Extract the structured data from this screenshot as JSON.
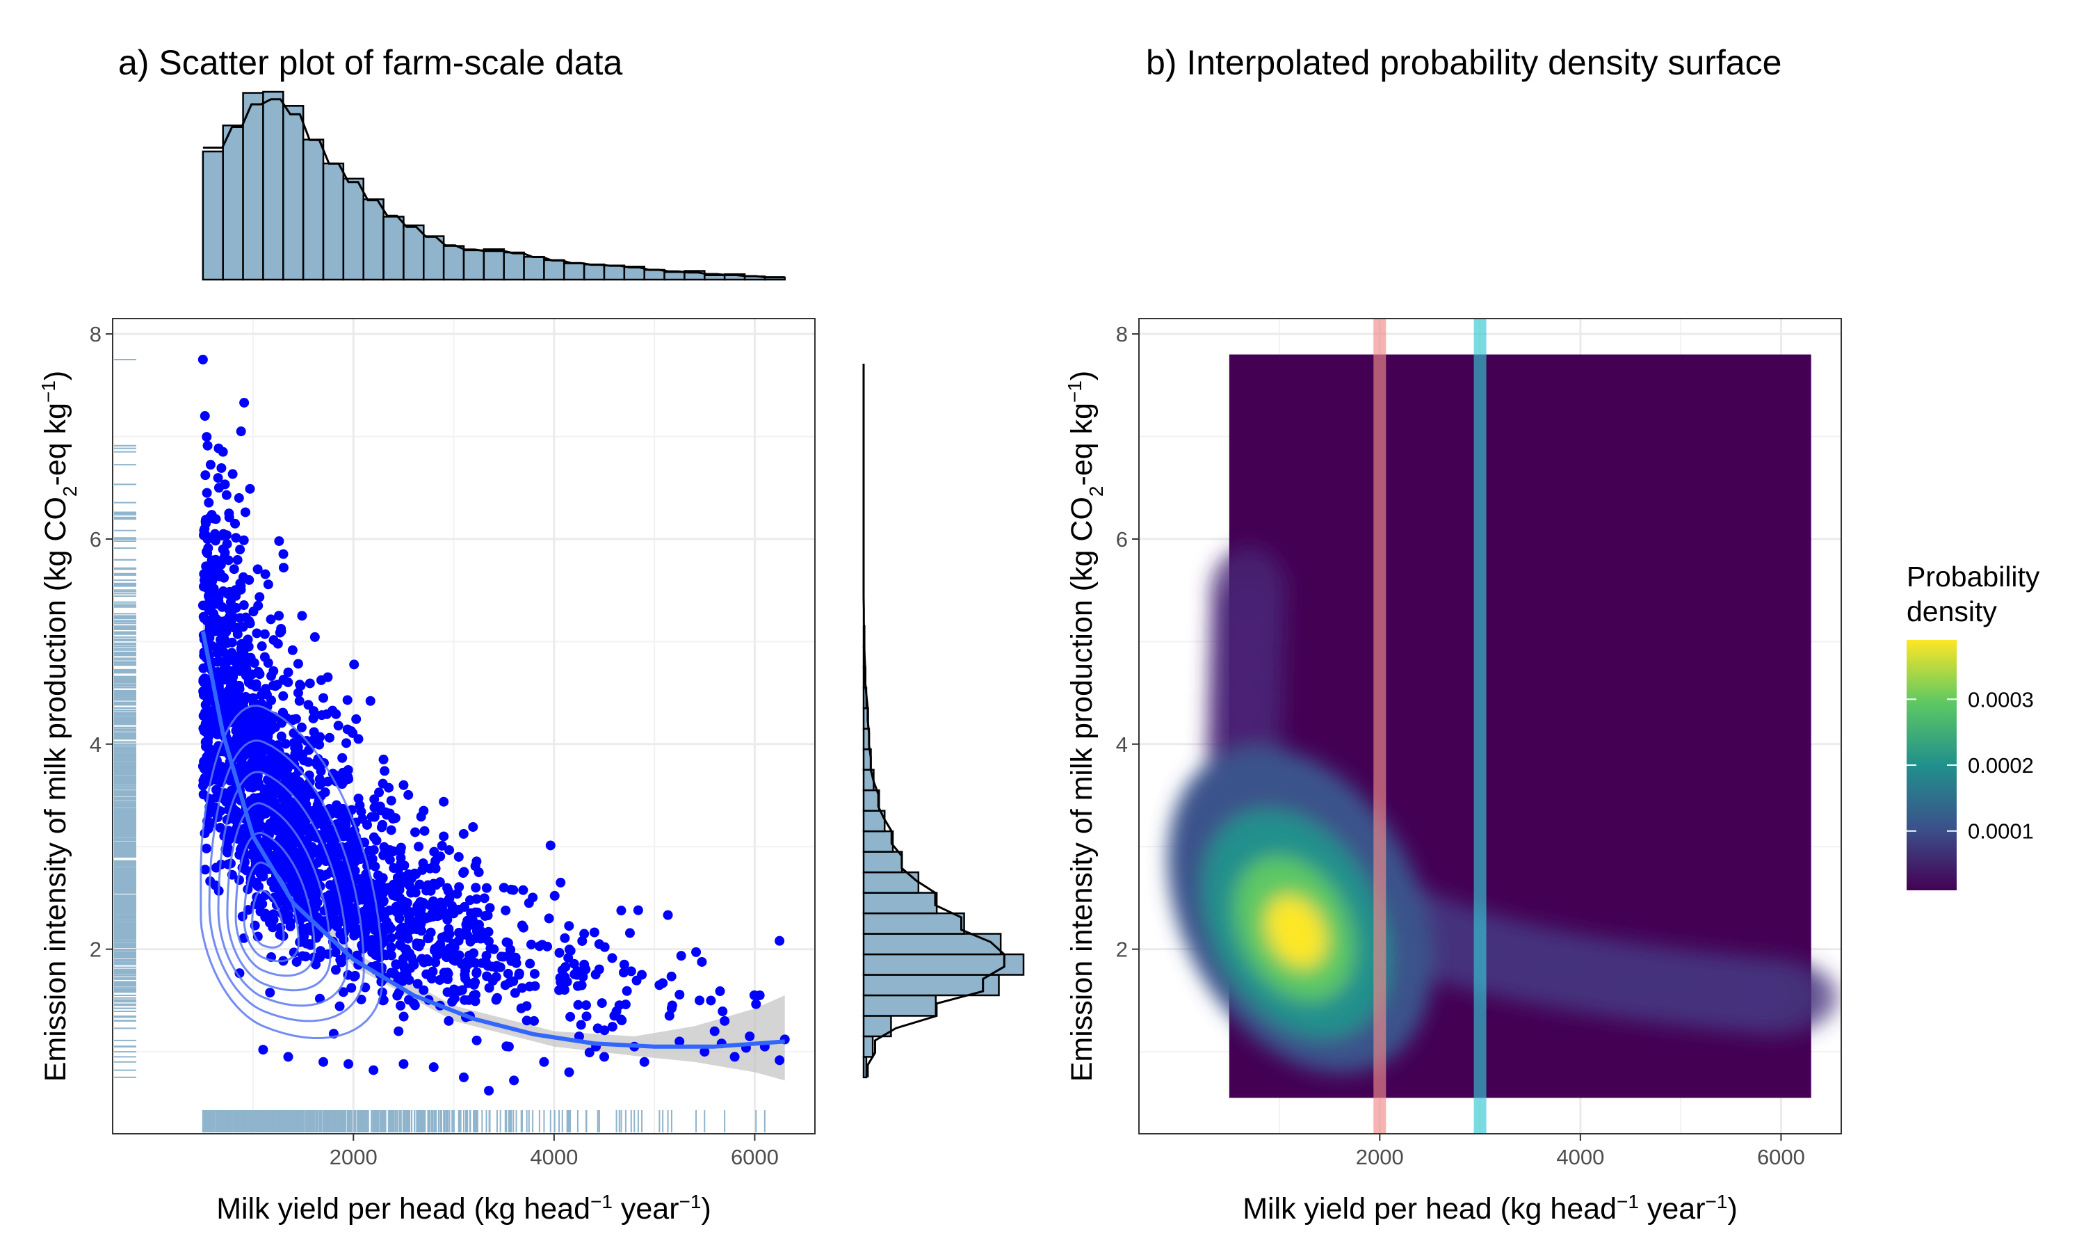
{
  "chart_data": [
    {
      "type": "scatter",
      "title": "a) Scatter plot of farm-scale data",
      "xlabel_main": "Milk yield per head (kg head",
      "xlabel_sup1": "−1",
      "xlabel_mid": " year",
      "xlabel_sup2": "−1",
      "xlabel_end": ")",
      "ylabel_main": "Emission intensity of milk production (kg CO",
      "ylabel_sub": "2",
      "ylabel_mid": "-eq kg",
      "ylabel_sup": "−1",
      "ylabel_end": ")",
      "xlim": [
        -400,
        6600
      ],
      "ylim": [
        0.2,
        8.15
      ],
      "xticks": [
        2000,
        4000,
        6000
      ],
      "xtick_labels": [
        "2000",
        "4000",
        "6000"
      ],
      "yticks": [
        2,
        4,
        6,
        8
      ],
      "ytick_labels": [
        "2",
        "4",
        "6",
        "8"
      ],
      "grid": true,
      "point_color": "#0000ff",
      "points": [
        [
          500,
          7.75
        ],
        [
          520,
          7.2
        ],
        [
          880,
          7.05
        ],
        [
          700,
          6.85
        ],
        [
          860,
          6.4
        ],
        [
          540,
          6.45
        ],
        [
          600,
          6.2
        ],
        [
          660,
          6.5
        ],
        [
          620,
          6.05
        ],
        [
          760,
          6.25
        ],
        [
          820,
          6.15
        ],
        [
          700,
          5.9
        ],
        [
          560,
          5.55
        ],
        [
          680,
          5.75
        ],
        [
          960,
          5.6
        ],
        [
          1050,
          5.35
        ],
        [
          1280,
          5.1
        ],
        [
          1350,
          4.7
        ],
        [
          1450,
          4.5
        ],
        [
          1700,
          4.45
        ],
        [
          1850,
          4.18
        ],
        [
          1600,
          4.25
        ],
        [
          2050,
          4.05
        ],
        [
          2300,
          3.85
        ],
        [
          2500,
          3.6
        ],
        [
          2700,
          3.35
        ],
        [
          2900,
          3.1
        ],
        [
          3050,
          2.9
        ],
        [
          3250,
          2.75
        ],
        [
          3500,
          2.6
        ],
        [
          3750,
          2.45
        ],
        [
          3950,
          2.3
        ],
        [
          4300,
          2.15
        ],
        [
          4450,
          2.05
        ],
        [
          4700,
          1.85
        ],
        [
          4300,
          1.85
        ],
        [
          5050,
          1.65
        ],
        [
          5450,
          1.5
        ],
        [
          6050,
          1.55
        ],
        [
          5700,
          1.3
        ],
        [
          6300,
          1.12
        ],
        [
          5250,
          1.1
        ],
        [
          5500,
          1.0
        ],
        [
          5800,
          0.95
        ],
        [
          5950,
          1.15
        ],
        [
          4800,
          1.05
        ],
        [
          4500,
          0.95
        ],
        [
          4150,
          0.8
        ],
        [
          3900,
          0.9
        ],
        [
          3600,
          0.72
        ],
        [
          3350,
          0.62
        ],
        [
          3100,
          0.75
        ],
        [
          2800,
          0.85
        ],
        [
          2500,
          0.88
        ],
        [
          2200,
          0.82
        ],
        [
          1950,
          0.88
        ],
        [
          1700,
          0.9
        ],
        [
          1350,
          0.95
        ],
        [
          1100,
          1.02
        ],
        [
          2950,
          1.3
        ],
        [
          3200,
          1.55
        ],
        [
          3650,
          1.75
        ],
        [
          2600,
          2.2
        ],
        [
          2350,
          2.6
        ],
        [
          2100,
          2.9
        ],
        [
          1900,
          3.1
        ],
        [
          1700,
          3.35
        ],
        [
          1500,
          3.55
        ],
        [
          1300,
          3.8
        ],
        [
          1150,
          4.1
        ],
        [
          1000,
          4.45
        ],
        [
          850,
          4.8
        ],
        [
          720,
          5.2
        ],
        [
          620,
          5.1
        ],
        [
          900,
          4.95
        ],
        [
          1200,
          4.25
        ],
        [
          2650,
          3.0
        ],
        [
          3400,
          2.0
        ],
        [
          4050,
          1.6
        ],
        [
          4600,
          1.35
        ],
        [
          5150,
          1.35
        ],
        [
          6100,
          1.05
        ],
        [
          5600,
          1.2
        ],
        [
          3800,
          1.3
        ],
        [
          2700,
          1.6
        ],
        [
          1600,
          2.4
        ],
        [
          1400,
          2.9
        ],
        [
          1250,
          3.3
        ],
        [
          1080,
          3.9
        ],
        [
          2200,
          2.3
        ],
        [
          3000,
          2.05
        ],
        [
          2450,
          1.2
        ],
        [
          4250,
          1.15
        ],
        [
          3550,
          1.05
        ],
        [
          4900,
          0.9
        ]
      ],
      "density_center": [
        1100,
        2.2
      ],
      "smooth_curve": [
        [
          500,
          5.1
        ],
        [
          700,
          4.1
        ],
        [
          1000,
          3.1
        ],
        [
          1400,
          2.45
        ],
        [
          2000,
          1.9
        ],
        [
          2600,
          1.55
        ],
        [
          3200,
          1.32
        ],
        [
          3800,
          1.17
        ],
        [
          4400,
          1.08
        ],
        [
          5000,
          1.05
        ],
        [
          5600,
          1.05
        ],
        [
          6300,
          1.1
        ]
      ],
      "smooth_band_upper": [
        [
          500,
          5.25
        ],
        [
          1000,
          3.2
        ],
        [
          2000,
          1.97
        ],
        [
          3000,
          1.45
        ],
        [
          4000,
          1.2
        ],
        [
          4800,
          1.15
        ],
        [
          5400,
          1.25
        ],
        [
          6000,
          1.42
        ],
        [
          6300,
          1.55
        ]
      ],
      "smooth_band_lower": [
        [
          500,
          4.95
        ],
        [
          1000,
          3.0
        ],
        [
          2000,
          1.83
        ],
        [
          3000,
          1.3
        ],
        [
          4000,
          1.05
        ],
        [
          4800,
          0.96
        ],
        [
          5400,
          0.9
        ],
        [
          6000,
          0.8
        ],
        [
          6300,
          0.72
        ]
      ],
      "marginal_color": "#8fb4cc",
      "marginal_x_hist": {
        "bin_start": 500,
        "bin_width": 200,
        "counts": [
          118,
          142,
          172,
          173,
          160,
          129,
          107,
          93,
          74,
          58,
          50,
          40,
          31,
          27,
          28,
          25,
          21,
          18,
          15,
          14,
          13,
          12,
          9,
          7,
          8,
          4,
          5,
          3,
          2
        ]
      },
      "marginal_y_hist": {
        "bin_start": 0.75,
        "bin_width": 0.2,
        "counts": [
          3,
          10,
          30,
          79,
          148,
          175,
          150,
          110,
          80,
          60,
          42,
          32,
          23,
          17,
          11,
          8,
          6,
          5,
          3,
          2,
          1,
          1,
          0,
          0,
          0,
          0,
          0,
          0,
          0,
          0,
          0,
          0,
          0,
          0,
          0,
          0
        ],
        "note_rows": 36
      }
    },
    {
      "type": "heatmap",
      "title": "b) Interpolated probability density surface",
      "xlabel_main": "Milk yield per head (kg head",
      "xlabel_sup1": "−1",
      "xlabel_mid": " year",
      "xlabel_sup2": "−1",
      "xlabel_end": ")",
      "ylabel_main": "Emission intensity of milk production (kg CO",
      "ylabel_sub": "2",
      "ylabel_mid": "-eq kg",
      "ylabel_sup": "−1",
      "ylabel_end": ")",
      "xlim": [
        -400,
        6600
      ],
      "ylim": [
        0.2,
        8.15
      ],
      "xticks": [
        2000,
        4000,
        6000
      ],
      "xtick_labels": [
        "2000",
        "4000",
        "6000"
      ],
      "yticks": [
        2,
        4,
        6,
        8
      ],
      "ytick_labels": [
        "2",
        "4",
        "6",
        "8"
      ],
      "grid": true,
      "surface_x_range": [
        500,
        6300
      ],
      "surface_y_range": [
        0.55,
        7.8
      ],
      "peak": [
        1150,
        2.2
      ],
      "vertical_lines": [
        {
          "x": 2000,
          "color": "#f08a8a"
        },
        {
          "x": 3000,
          "color": "#36c6d3"
        }
      ],
      "legend": {
        "title_line1": "Probability",
        "title_line2": "density",
        "ticks": [
          0.0001,
          0.0002,
          0.0003
        ],
        "tick_labels": [
          "0.0001",
          "0.0002",
          "0.0003"
        ],
        "range": [
          1e-05,
          0.00039
        ],
        "colors": [
          "#440154",
          "#3b528b",
          "#21908c",
          "#5dc863",
          "#fde725"
        ]
      }
    }
  ]
}
